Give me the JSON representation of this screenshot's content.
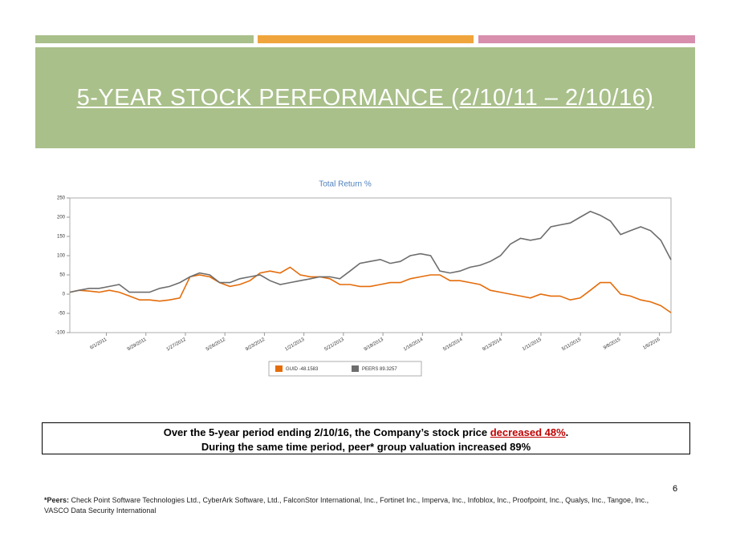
{
  "header": {
    "title": "5-YEAR STOCK PERFORMANCE (2/10/11 – 2/10/16)"
  },
  "chart_data": {
    "type": "line",
    "title": "Total Return %",
    "x": [
      "2/10/2011",
      "3/10/2011",
      "4/10/2011",
      "5/10/2011",
      "6/10/2011",
      "7/10/2011",
      "8/10/2011",
      "9/10/2011",
      "10/10/2011",
      "11/10/2011",
      "12/10/2011",
      "1/10/2012",
      "2/10/2012",
      "3/10/2012",
      "4/10/2012",
      "5/10/2012",
      "6/10/2012",
      "7/10/2012",
      "8/10/2012",
      "9/10/2012",
      "10/10/2012",
      "11/10/2012",
      "12/10/2012",
      "1/10/2013",
      "2/10/2013",
      "3/10/2013",
      "4/10/2013",
      "5/10/2013",
      "6/10/2013",
      "7/10/2013",
      "8/10/2013",
      "9/10/2013",
      "10/10/2013",
      "11/10/2013",
      "12/10/2013",
      "1/10/2014",
      "2/10/2014",
      "3/10/2014",
      "4/10/2014",
      "5/10/2014",
      "6/10/2014",
      "7/10/2014",
      "8/10/2014",
      "9/10/2014",
      "10/10/2014",
      "11/10/2014",
      "12/10/2014",
      "1/10/2015",
      "2/10/2015",
      "3/10/2015",
      "4/10/2015",
      "5/10/2015",
      "6/10/2015",
      "7/10/2015",
      "8/10/2015",
      "9/10/2015",
      "10/10/2015",
      "11/10/2015",
      "12/10/2015",
      "1/10/2016",
      "2/10/2016"
    ],
    "series": [
      {
        "name": "GUID -48.1583",
        "color": "#e46c0a",
        "values": [
          5,
          10,
          8,
          5,
          10,
          5,
          -5,
          -15,
          -15,
          -18,
          -15,
          -10,
          45,
          50,
          45,
          30,
          20,
          25,
          35,
          55,
          60,
          55,
          70,
          50,
          45,
          45,
          40,
          25,
          25,
          20,
          20,
          25,
          30,
          30,
          40,
          45,
          50,
          50,
          35,
          35,
          30,
          25,
          10,
          5,
          0,
          -5,
          -10,
          0,
          -5,
          -5,
          -15,
          -10,
          10,
          30,
          30,
          0,
          -5,
          -15,
          -20,
          -30,
          -48.1583
        ]
      },
      {
        "name": "PEERS 89.3257",
        "color": "#6d6d6d",
        "values": [
          5,
          10,
          15,
          15,
          20,
          25,
          5,
          5,
          5,
          15,
          20,
          30,
          45,
          55,
          50,
          30,
          30,
          40,
          45,
          50,
          35,
          25,
          30,
          35,
          40,
          45,
          45,
          40,
          60,
          80,
          85,
          90,
          80,
          85,
          100,
          105,
          100,
          60,
          55,
          60,
          70,
          75,
          85,
          100,
          130,
          145,
          140,
          145,
          175,
          180,
          185,
          200,
          215,
          205,
          190,
          155,
          165,
          175,
          165,
          140,
          89.3257
        ]
      }
    ],
    "xlim": [
      "2/10/2011",
      "2/10/2016"
    ],
    "xticks": [
      "6/1/2011",
      "9/29/2011",
      "1/27/2012",
      "5/26/2012",
      "9/23/2012",
      "1/21/2013",
      "5/21/2013",
      "9/18/2013",
      "1/16/2014",
      "5/16/2014",
      "9/13/2014",
      "1/11/2015",
      "5/11/2015",
      "9/8/2015",
      "1/6/2016"
    ],
    "ylim": [
      -100,
      250
    ],
    "yticks": [
      -100,
      -50,
      0,
      50,
      100,
      150,
      200,
      250
    ],
    "legend": "bottom"
  },
  "callout": {
    "line1_a": "Over the 5-year period ending 2/10/16, the Company’s stock price ",
    "line1_b": "decreased 48%",
    "line1_c": ".",
    "line2": "During the same time period, peer* group valuation increased 89%"
  },
  "page_number": "6",
  "footnote": {
    "label": "*Peers:",
    "text": "Check Point Software Technologies Ltd., CyberArk Software, Ltd., FalconStor International, Inc., Fortinet Inc., Imperva, Inc., Infoblox, Inc., Proofpoint, Inc., Qualys, Inc., Tangoe, Inc., VASCO Data Security International"
  }
}
